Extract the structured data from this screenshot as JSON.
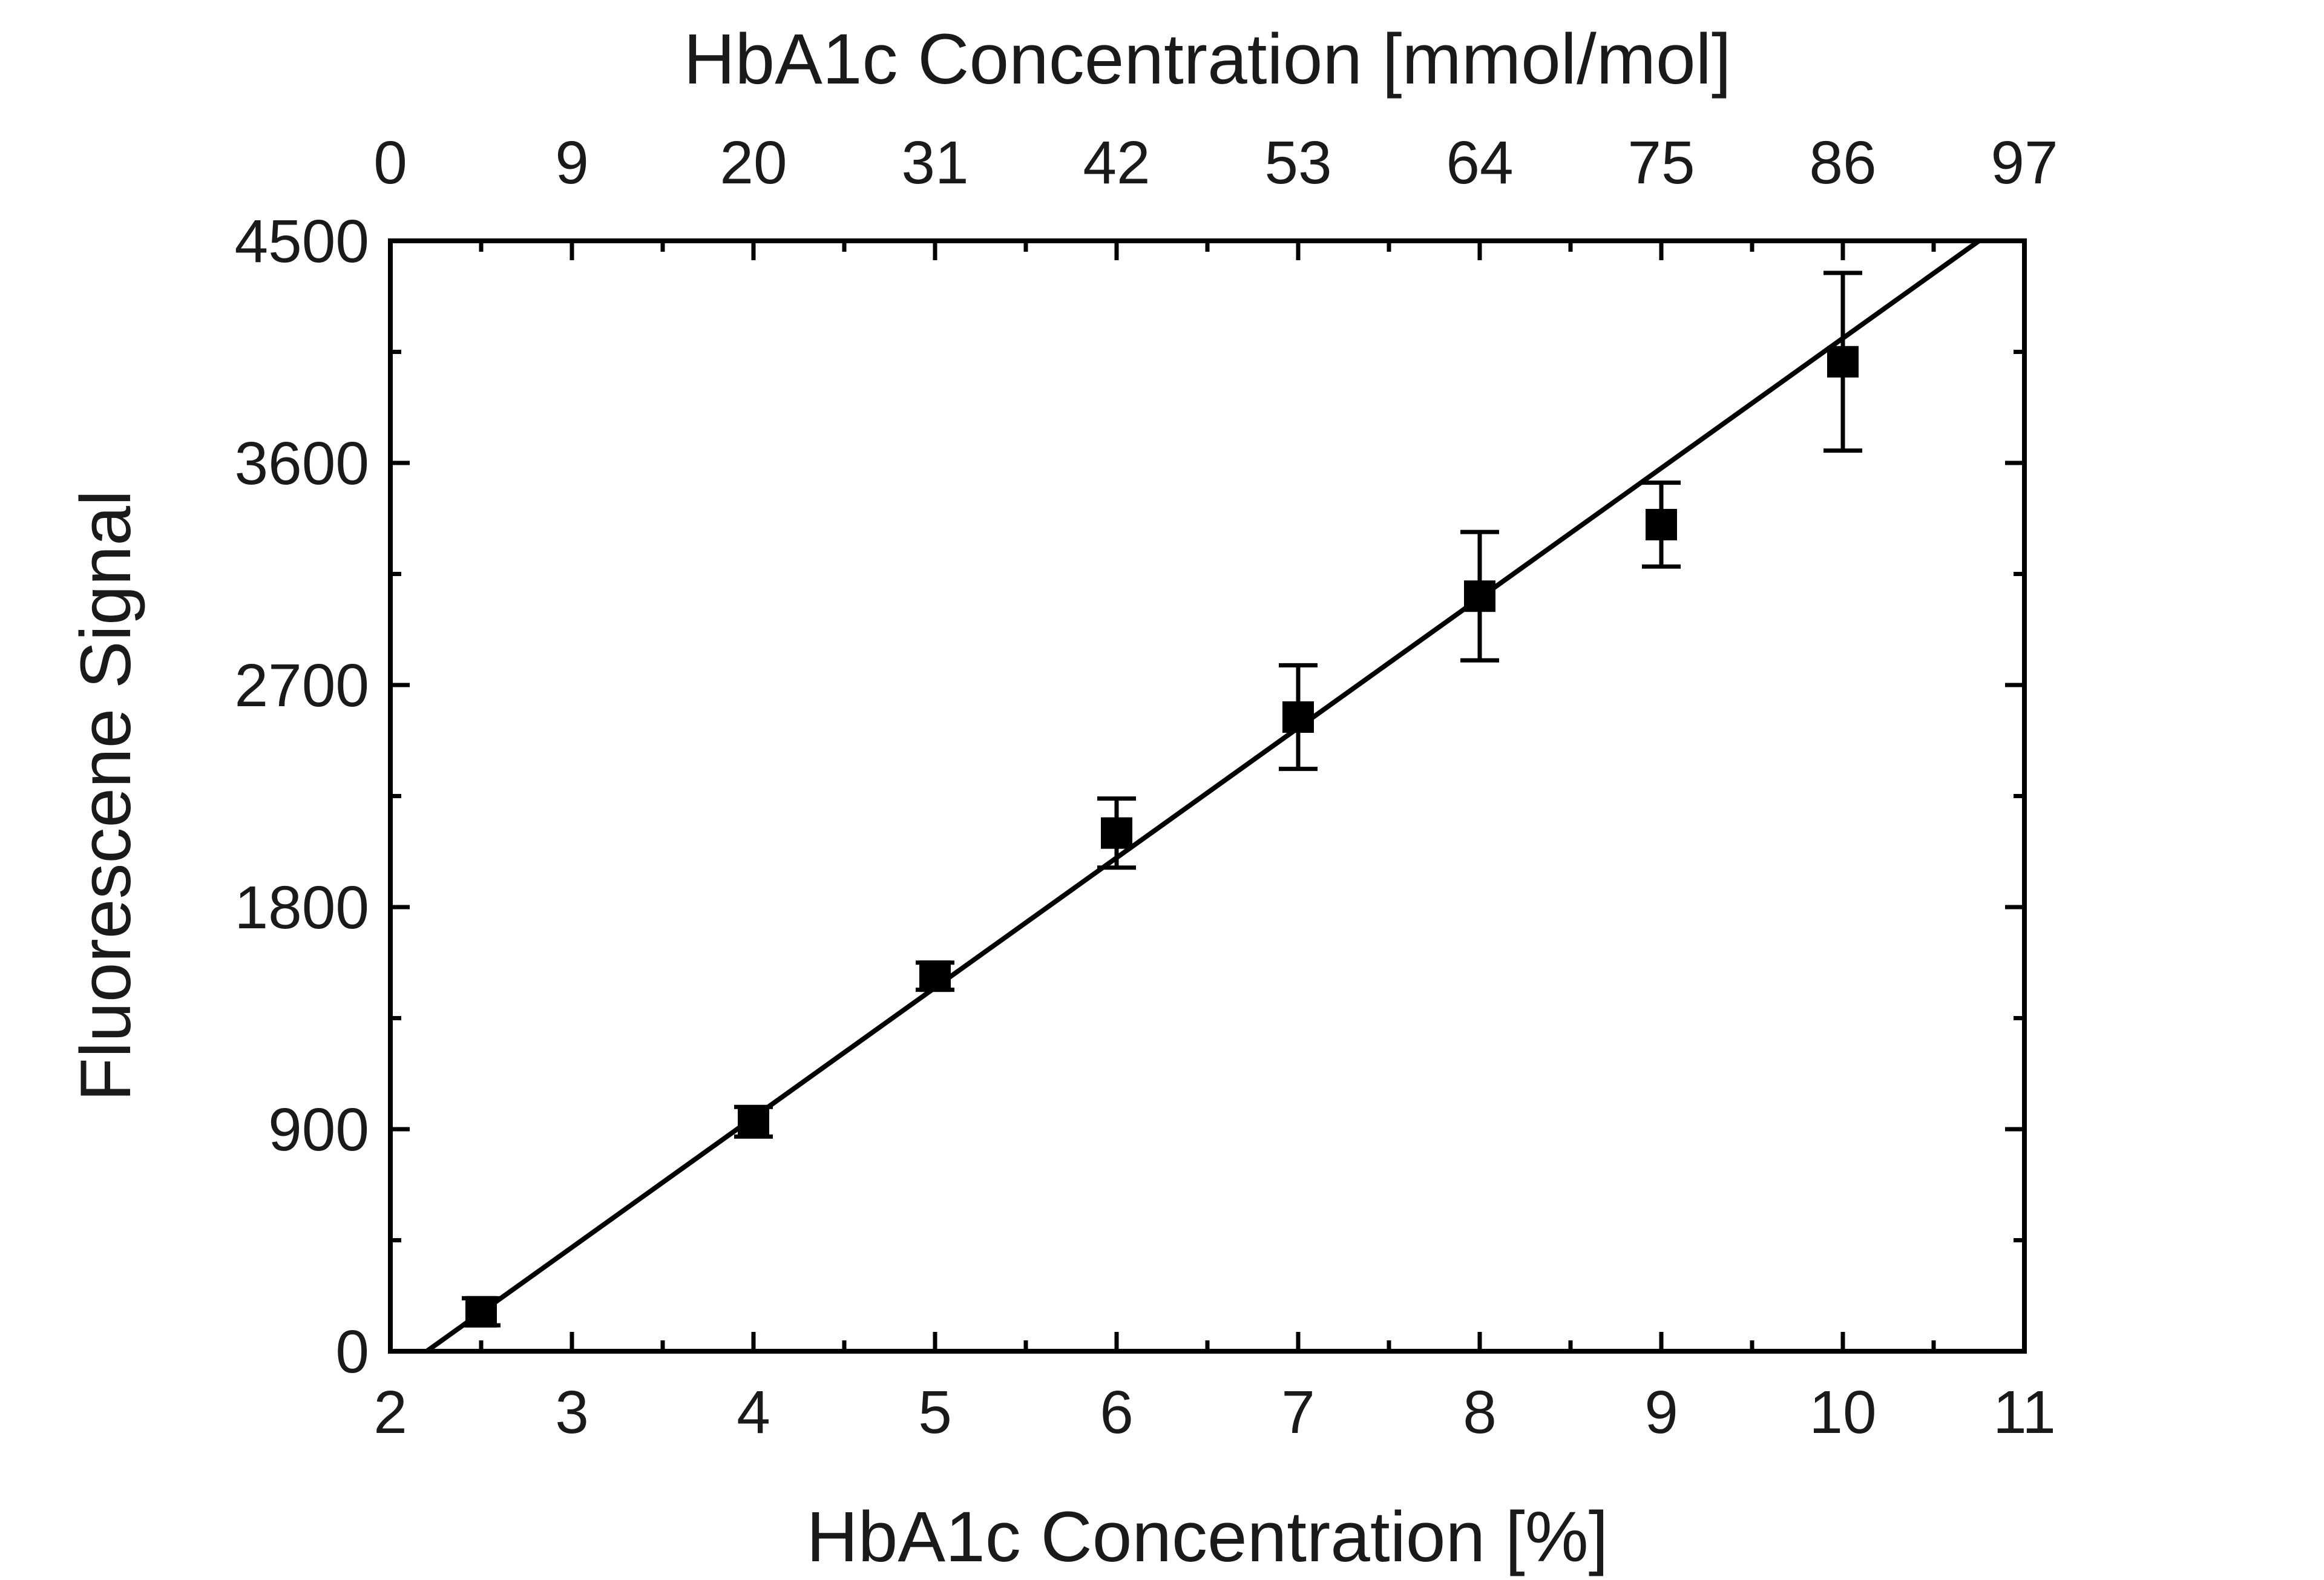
{
  "chart_data": {
    "type": "scatter",
    "xlabel": "HbA1c Concentration [%]",
    "x2label": "HbA1c Concentration [mmol/mol]",
    "ylabel": "Fluorescene Signal",
    "xlim": [
      2,
      11
    ],
    "ylim": [
      0,
      4500
    ],
    "x_ticks": [
      2,
      3,
      4,
      5,
      6,
      7,
      8,
      9,
      10,
      11
    ],
    "x_tick_labels": [
      "2",
      "3",
      "4",
      "5",
      "6",
      "7",
      "8",
      "9",
      "10",
      "11"
    ],
    "x2_tick_labels": [
      "0",
      "9",
      "20",
      "31",
      "42",
      "53",
      "64",
      "75",
      "86",
      "97"
    ],
    "y_ticks": [
      0,
      900,
      1800,
      2700,
      3600,
      4500
    ],
    "y_tick_labels": [
      "0",
      "900",
      "1800",
      "2700",
      "3600",
      "4500"
    ],
    "x_minor_ticks": [
      2.5,
      3.5,
      4.5,
      5.5,
      6.5,
      7.5,
      8.5,
      9.5,
      10.5
    ],
    "y_minor_ticks": [
      450,
      1350,
      2250,
      3150,
      4050
    ],
    "grid": false,
    "legend": "none",
    "marker": "filled-square",
    "color": "#000000",
    "points": [
      {
        "x": 2.5,
        "y": 160,
        "err": 55
      },
      {
        "x": 4,
        "y": 930,
        "err": 60
      },
      {
        "x": 5,
        "y": 1520,
        "err": 55
      },
      {
        "x": 6,
        "y": 2100,
        "err": 140
      },
      {
        "x": 7,
        "y": 2570,
        "err": 210
      },
      {
        "x": 8,
        "y": 3060,
        "err": 260
      },
      {
        "x": 9,
        "y": 3350,
        "err": 170
      },
      {
        "x": 10,
        "y": 4010,
        "err": 360
      }
    ],
    "fit_line": {
      "x": [
        2.2,
        10.75
      ],
      "y": [
        0,
        4500
      ]
    }
  }
}
